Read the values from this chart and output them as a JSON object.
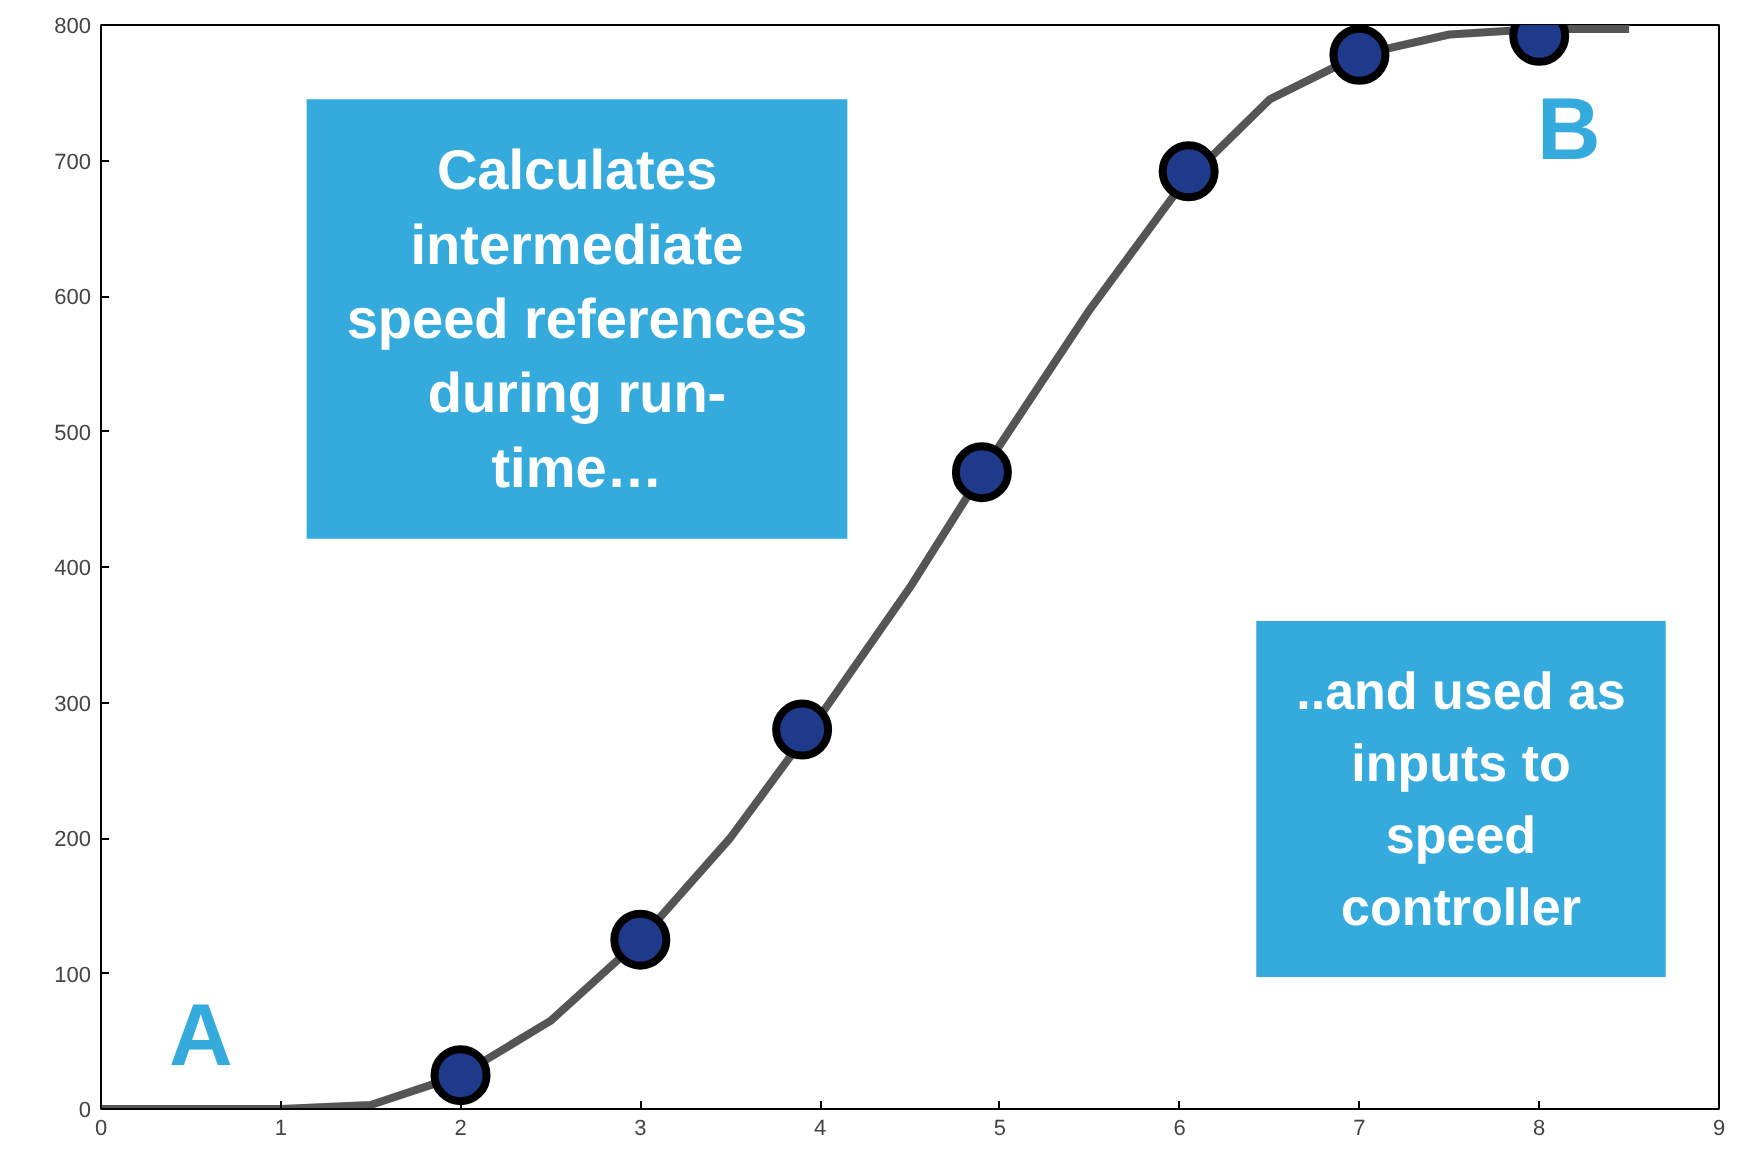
{
  "chart_data": {
    "type": "line",
    "xlim": [
      0,
      9
    ],
    "ylim": [
      0,
      800
    ],
    "xticks": [
      0,
      1,
      2,
      3,
      4,
      5,
      6,
      7,
      8,
      9
    ],
    "yticks": [
      0,
      100,
      200,
      300,
      400,
      500,
      600,
      700,
      800
    ],
    "grid": false,
    "series": [
      {
        "color": "#555555",
        "x": [
          0,
          0.5,
          1,
          1.5,
          2,
          2.5,
          3,
          3.5,
          4,
          4.5,
          5,
          5.5,
          6,
          6.5,
          7,
          7.5,
          8,
          8.5
        ],
        "values": [
          0,
          0,
          0,
          3,
          25,
          65,
          125,
          200,
          290,
          385,
          490,
          590,
          680,
          745,
          778,
          793,
          797,
          797
        ]
      },
      {
        "type": "scatter",
        "color": "#1f3a8a",
        "x": [
          2,
          3,
          3.9,
          4.9,
          6.05,
          7,
          8
        ],
        "values": [
          25,
          125,
          280,
          470,
          692,
          778,
          792
        ],
        "marker": "circle"
      }
    ],
    "annotations": [
      "Calculates\nintermediate\nspeed references\nduring run-\ntime…",
      "..and used as\ninputs to\nspeed\ncontroller",
      "A",
      "B"
    ]
  }
}
